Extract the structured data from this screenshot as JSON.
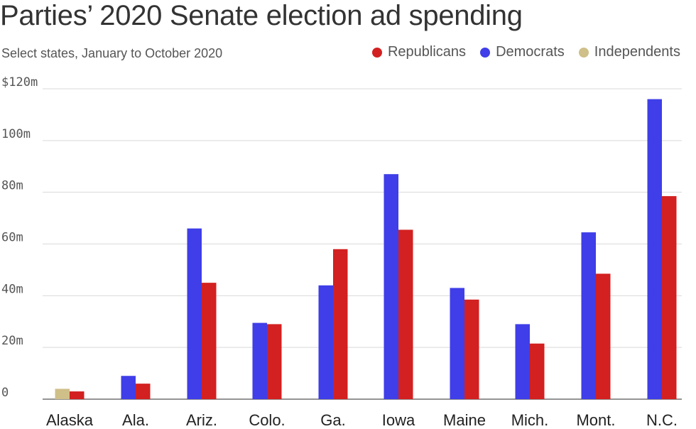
{
  "title": "Parties’ 2020 Senate election ad spending",
  "subtitle": "Select states, January to October 2020",
  "colors": {
    "republicans": "#d32020",
    "democrats": "#3f3ee8",
    "independents": "#cfbf88",
    "grid": "#d9d9d9",
    "axis_text": "#555555"
  },
  "chart_data": {
    "type": "bar",
    "categories": [
      "Alaska",
      "Ala.",
      "Ariz.",
      "Colo.",
      "Ga.",
      "Iowa",
      "Maine",
      "Mich.",
      "Mont.",
      "N.C."
    ],
    "series": [
      {
        "name": "Republicans",
        "color": "#d32020",
        "values": [
          3,
          6,
          45,
          29,
          58,
          65.5,
          38.5,
          21.5,
          48.5,
          78.5
        ]
      },
      {
        "name": "Democrats",
        "color": "#3f3ee8",
        "values": [
          null,
          9,
          66,
          29.5,
          44,
          87,
          43,
          29,
          64.5,
          116
        ]
      },
      {
        "name": "Independents",
        "color": "#cfbf88",
        "values": [
          4,
          null,
          null,
          null,
          null,
          null,
          null,
          null,
          null,
          null
        ]
      }
    ],
    "yticks": [
      0,
      20,
      40,
      60,
      80,
      100,
      120
    ],
    "ytick_labels": [
      "0",
      "20m",
      "40m",
      "60m",
      "80m",
      "100m",
      "$120m"
    ],
    "ylim": [
      0,
      120
    ],
    "grid": true,
    "legend_position": "top-right"
  }
}
